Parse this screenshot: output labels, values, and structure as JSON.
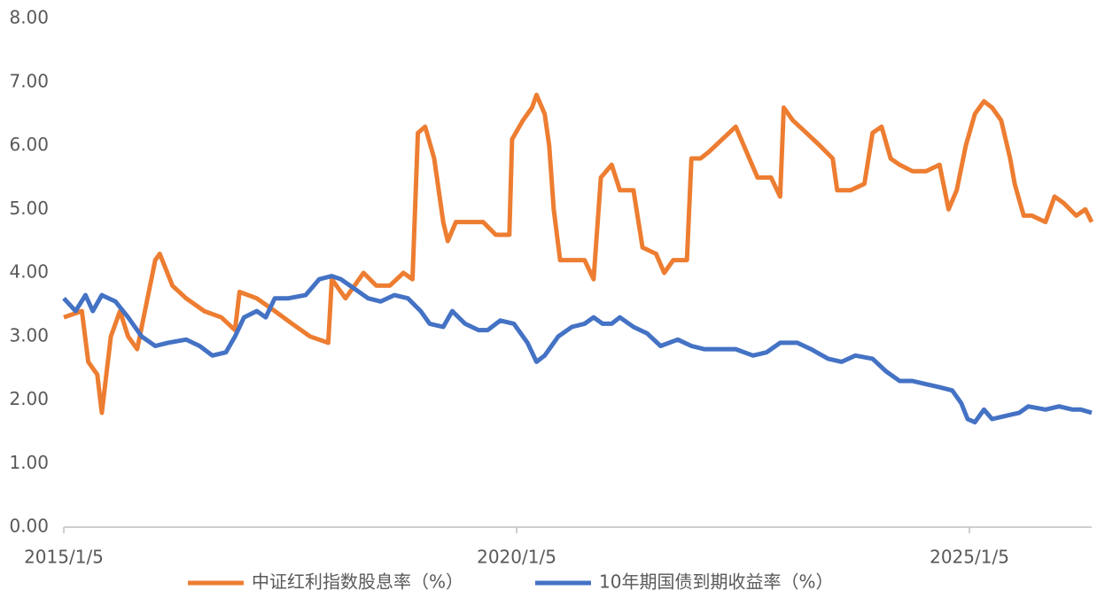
{
  "chart_data": {
    "type": "line",
    "xlim": [
      2015.0,
      2026.35
    ],
    "xticks": [
      {
        "value": 2015.0,
        "label": "2015/1/5"
      },
      {
        "value": 2020.0,
        "label": "2020/1/5"
      },
      {
        "value": 2025.0,
        "label": "2025/1/5"
      }
    ],
    "ylim": [
      0,
      8
    ],
    "yticks": [
      {
        "value": 0,
        "label": "0.00"
      },
      {
        "value": 1,
        "label": "1.00"
      },
      {
        "value": 2,
        "label": "2.00"
      },
      {
        "value": 3,
        "label": "3.00"
      },
      {
        "value": 4,
        "label": "4.00"
      },
      {
        "value": 5,
        "label": "5.00"
      },
      {
        "value": 6,
        "label": "6.00"
      },
      {
        "value": 7,
        "label": "7.00"
      },
      {
        "value": 8,
        "label": "8.00"
      }
    ],
    "grid": false,
    "legend": "bottom",
    "series": [
      {
        "name": "中证红利指数股息率（%）",
        "color": "#ed7d31",
        "x": [
          2015.0,
          2015.2,
          2015.27,
          2015.37,
          2015.42,
          2015.52,
          2015.62,
          2015.71,
          2015.81,
          2015.91,
          2016.01,
          2016.06,
          2016.2,
          2016.35,
          2016.55,
          2016.74,
          2016.89,
          2016.94,
          2017.13,
          2017.33,
          2017.52,
          2017.72,
          2017.92,
          2017.96,
          2018.11,
          2018.21,
          2018.31,
          2018.45,
          2018.6,
          2018.75,
          2018.85,
          2018.91,
          2018.99,
          2019.09,
          2019.19,
          2019.24,
          2019.33,
          2019.48,
          2019.63,
          2019.77,
          2019.92,
          2019.95,
          2020.07,
          2020.17,
          2020.22,
          2020.31,
          2020.36,
          2020.41,
          2020.48,
          2020.61,
          2020.75,
          2020.85,
          2020.93,
          2021.05,
          2021.14,
          2021.29,
          2021.39,
          2021.54,
          2021.63,
          2021.73,
          2021.88,
          2021.93,
          2022.03,
          2022.12,
          2022.27,
          2022.42,
          2022.51,
          2022.66,
          2022.81,
          2022.91,
          2022.95,
          2023.05,
          2023.2,
          2023.35,
          2023.49,
          2023.54,
          2023.69,
          2023.84,
          2023.93,
          2024.03,
          2024.13,
          2024.23,
          2024.37,
          2024.52,
          2024.67,
          2024.77,
          2024.86,
          2024.96,
          2025.06,
          2025.16,
          2025.25,
          2025.35,
          2025.45,
          2025.5,
          2025.6,
          2025.69,
          2025.84,
          2025.94,
          2026.04,
          2026.18,
          2026.28,
          2026.35
        ],
        "values": [
          3.3,
          3.4,
          2.6,
          2.4,
          1.8,
          3.0,
          3.4,
          3.0,
          2.8,
          3.5,
          4.2,
          4.3,
          3.8,
          3.6,
          3.4,
          3.3,
          3.1,
          3.7,
          3.6,
          3.4,
          3.2,
          3.0,
          2.9,
          3.9,
          3.6,
          3.8,
          4.0,
          3.8,
          3.8,
          4.0,
          3.9,
          6.2,
          6.3,
          5.8,
          4.8,
          4.5,
          4.8,
          4.8,
          4.8,
          4.6,
          4.6,
          6.1,
          6.4,
          6.6,
          6.8,
          6.5,
          6.0,
          5.0,
          4.2,
          4.2,
          4.2,
          3.9,
          5.5,
          5.7,
          5.3,
          5.3,
          4.4,
          4.3,
          4.0,
          4.2,
          4.2,
          5.8,
          5.8,
          5.9,
          6.1,
          6.3,
          6.0,
          5.5,
          5.5,
          5.2,
          6.6,
          6.4,
          6.2,
          6.0,
          5.8,
          5.3,
          5.3,
          5.4,
          6.2,
          6.3,
          5.8,
          5.7,
          5.6,
          5.6,
          5.7,
          5.0,
          5.3,
          6.0,
          6.5,
          6.7,
          6.6,
          6.4,
          5.8,
          5.4,
          4.9,
          4.9,
          4.8,
          5.2,
          5.1,
          4.9,
          5.0,
          4.8
        ]
      },
      {
        "name": "10年期国债到期收益率（%）",
        "color": "#4472c4",
        "x": [
          2015.0,
          2015.13,
          2015.24,
          2015.32,
          2015.42,
          2015.57,
          2015.71,
          2015.86,
          2016.01,
          2016.15,
          2016.35,
          2016.5,
          2016.64,
          2016.79,
          2016.89,
          2016.99,
          2017.13,
          2017.23,
          2017.33,
          2017.48,
          2017.67,
          2017.82,
          2017.96,
          2018.06,
          2018.21,
          2018.36,
          2018.5,
          2018.65,
          2018.8,
          2018.94,
          2019.04,
          2019.19,
          2019.29,
          2019.43,
          2019.58,
          2019.68,
          2019.82,
          2019.97,
          2020.12,
          2020.22,
          2020.31,
          2020.46,
          2020.61,
          2020.75,
          2020.85,
          2020.95,
          2021.05,
          2021.14,
          2021.29,
          2021.44,
          2021.59,
          2021.78,
          2021.93,
          2022.07,
          2022.22,
          2022.42,
          2022.61,
          2022.76,
          2022.91,
          2023.1,
          2023.25,
          2023.44,
          2023.59,
          2023.74,
          2023.93,
          2024.08,
          2024.23,
          2024.37,
          2024.52,
          2024.67,
          2024.81,
          2024.91,
          2024.98,
          2025.06,
          2025.16,
          2025.25,
          2025.4,
          2025.55,
          2025.65,
          2025.84,
          2025.99,
          2026.14,
          2026.23,
          2026.35
        ],
        "values": [
          3.6,
          3.4,
          3.65,
          3.4,
          3.65,
          3.55,
          3.3,
          3.0,
          2.85,
          2.9,
          2.95,
          2.85,
          2.7,
          2.75,
          3.0,
          3.3,
          3.4,
          3.3,
          3.6,
          3.6,
          3.65,
          3.9,
          3.95,
          3.9,
          3.75,
          3.6,
          3.55,
          3.65,
          3.6,
          3.4,
          3.2,
          3.15,
          3.4,
          3.2,
          3.1,
          3.1,
          3.25,
          3.2,
          2.9,
          2.6,
          2.7,
          3.0,
          3.15,
          3.2,
          3.3,
          3.2,
          3.2,
          3.3,
          3.15,
          3.05,
          2.85,
          2.95,
          2.85,
          2.8,
          2.8,
          2.8,
          2.7,
          2.75,
          2.9,
          2.9,
          2.8,
          2.65,
          2.6,
          2.7,
          2.65,
          2.45,
          2.3,
          2.3,
          2.25,
          2.2,
          2.15,
          1.95,
          1.7,
          1.65,
          1.85,
          1.7,
          1.75,
          1.8,
          1.9,
          1.85,
          1.9,
          1.85,
          1.85,
          1.8
        ]
      }
    ]
  }
}
